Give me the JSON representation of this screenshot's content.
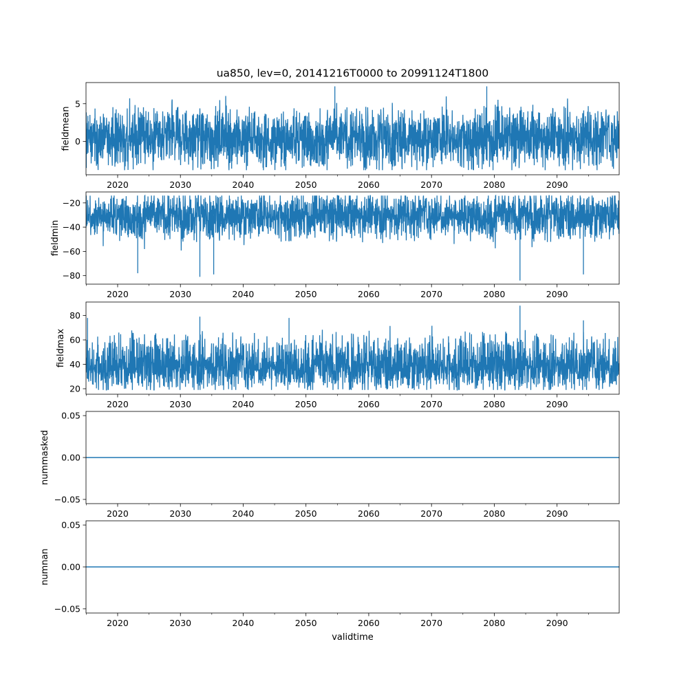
{
  "figure": {
    "title": "ua850, lev=0, 20141216T0000 to 20991124T1800",
    "xlabel": "validtime",
    "line_color": "#1f77b4"
  },
  "chart_data": [
    {
      "type": "line",
      "ylabel": "fieldmean",
      "x_range": [
        "2014-12-16T00:00",
        "2099-11-24T18:00"
      ],
      "xlim": [
        2014.96,
        2099.9
      ],
      "ylim": [
        -4.4,
        7.8
      ],
      "yticks": [
        0,
        5
      ],
      "ytick_labels": [
        "0",
        "5"
      ],
      "xticks": [
        2020,
        2030,
        2040,
        2050,
        2060,
        2070,
        2080,
        2090
      ],
      "xtick_labels": [
        "2020",
        "2030",
        "2040",
        "2050",
        "2060",
        "2070",
        "2080",
        "2090"
      ],
      "series_summary": {
        "typical_low": -2.5,
        "typical_high": 3.5,
        "center": 0.5,
        "min": -3.8,
        "max": 7.3
      },
      "extremes": [
        {
          "x": 2015.0,
          "y": -3.5
        },
        {
          "x": 2054.6,
          "y": 7.3
        },
        {
          "x": 2078.8,
          "y": 7.3
        },
        {
          "x": 2079.8,
          "y": -3.8
        }
      ]
    },
    {
      "type": "line",
      "ylabel": "fieldmin",
      "x_range": [
        "2014-12-16T00:00",
        "2099-11-24T18:00"
      ],
      "xlim": [
        2014.96,
        2099.9
      ],
      "ylim": [
        -87,
        -11
      ],
      "yticks": [
        -80,
        -60,
        -40,
        -20
      ],
      "ytick_labels": [
        "−80",
        "−60",
        "−40",
        "−20"
      ],
      "xticks": [
        2020,
        2030,
        2040,
        2050,
        2060,
        2070,
        2080,
        2090
      ],
      "xtick_labels": [
        "2020",
        "2030",
        "2040",
        "2050",
        "2060",
        "2070",
        "2080",
        "2090"
      ],
      "series_summary": {
        "typical_low": -45,
        "typical_high": -16,
        "center": -30,
        "min": -84,
        "max": -14
      },
      "extremes": [
        {
          "x": 2023.2,
          "y": -78
        },
        {
          "x": 2033.1,
          "y": -81
        },
        {
          "x": 2035.3,
          "y": -79
        },
        {
          "x": 2084.1,
          "y": -84
        },
        {
          "x": 2094.2,
          "y": -79
        }
      ]
    },
    {
      "type": "line",
      "ylabel": "fieldmax",
      "x_range": [
        "2014-12-16T00:00",
        "2099-11-24T18:00"
      ],
      "xlim": [
        2014.96,
        2099.9
      ],
      "ylim": [
        15.5,
        91
      ],
      "yticks": [
        20,
        40,
        60,
        80
      ],
      "ytick_labels": [
        "20",
        "40",
        "60",
        "80"
      ],
      "xticks": [
        2020,
        2030,
        2040,
        2050,
        2060,
        2070,
        2080,
        2090
      ],
      "xtick_labels": [
        "2020",
        "2030",
        "2040",
        "2050",
        "2060",
        "2070",
        "2080",
        "2090"
      ],
      "series_summary": {
        "typical_low": 24,
        "typical_high": 58,
        "center": 38,
        "min": 19,
        "max": 88
      },
      "extremes": [
        {
          "x": 2015.2,
          "y": 78
        },
        {
          "x": 2033.1,
          "y": 79
        },
        {
          "x": 2047.3,
          "y": 78
        },
        {
          "x": 2084.1,
          "y": 88
        },
        {
          "x": 2094.2,
          "y": 76
        }
      ]
    },
    {
      "type": "line",
      "ylabel": "nummasked",
      "x_range": [
        "2014-12-16T00:00",
        "2099-11-24T18:00"
      ],
      "xlim": [
        2014.96,
        2099.9
      ],
      "ylim": [
        -0.055,
        0.055
      ],
      "yticks": [
        -0.05,
        0,
        0.05
      ],
      "ytick_labels": [
        "−0.05",
        "0.00",
        "0.05"
      ],
      "xticks": [
        2020,
        2030,
        2040,
        2050,
        2060,
        2070,
        2080,
        2090
      ],
      "xtick_labels": [
        "2020",
        "2030",
        "2040",
        "2050",
        "2060",
        "2070",
        "2080",
        "2090"
      ],
      "constant_value": 0
    },
    {
      "type": "line",
      "ylabel": "numnan",
      "x_range": [
        "2014-12-16T00:00",
        "2099-11-24T18:00"
      ],
      "xlim": [
        2014.96,
        2099.9
      ],
      "ylim": [
        -0.055,
        0.055
      ],
      "yticks": [
        -0.05,
        0,
        0.05
      ],
      "ytick_labels": [
        "−0.05",
        "0.00",
        "0.05"
      ],
      "xticks": [
        2020,
        2030,
        2040,
        2050,
        2060,
        2070,
        2080,
        2090
      ],
      "xtick_labels": [
        "2020",
        "2030",
        "2040",
        "2050",
        "2060",
        "2070",
        "2080",
        "2090"
      ],
      "constant_value": 0
    }
  ]
}
